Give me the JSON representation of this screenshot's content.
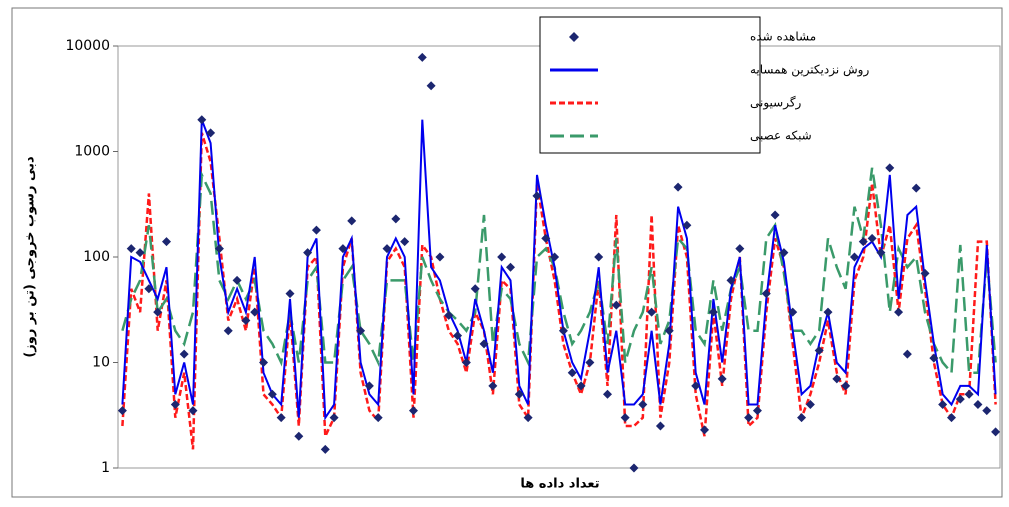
{
  "chart_data": {
    "type": "line",
    "x_label": "تعداد داده ها",
    "y_label": "دبی رسوب خروجی (تن بر روز)",
    "y_log": true,
    "ylim": [
      1,
      10000
    ],
    "yticks": [
      1,
      10,
      100,
      1000,
      10000
    ],
    "legend": "upper center",
    "categories": [
      null,
      null,
      null,
      null,
      null,
      null,
      null,
      null,
      null,
      null,
      null,
      null,
      null,
      null,
      null,
      null,
      null,
      null,
      null,
      null,
      null,
      null,
      null,
      null,
      null,
      null,
      null,
      null,
      null,
      null,
      null,
      null,
      null,
      null,
      null,
      null,
      null,
      null,
      null,
      null,
      null,
      null,
      null,
      null,
      null,
      null,
      null,
      null,
      null,
      null,
      null,
      null,
      null,
      null,
      null,
      null,
      null,
      null,
      null,
      null,
      null,
      null,
      null,
      null,
      null,
      null,
      null,
      null,
      null,
      null,
      null,
      null,
      null,
      null,
      null,
      null,
      null,
      null,
      null,
      null,
      null,
      null,
      null,
      null,
      null,
      null,
      null,
      null,
      null,
      null,
      null,
      null,
      null,
      null,
      null,
      null,
      null,
      null,
      null,
      null
    ],
    "series": [
      {
        "name": "مشاهده شده",
        "color": "#1c2670",
        "marker": "diamond",
        "values": [
          3.5,
          120,
          110,
          50,
          30,
          140,
          4,
          12,
          3.5,
          2000,
          1500,
          120,
          20,
          60,
          25,
          30,
          10,
          5,
          3,
          45,
          2,
          110,
          180,
          1.5,
          3,
          120,
          220,
          20,
          6,
          3,
          120,
          230,
          140,
          3.5,
          7800,
          4200,
          100,
          28,
          18,
          10,
          50,
          15,
          6,
          100,
          80,
          5,
          3,
          380,
          150,
          100,
          20,
          8,
          6,
          10,
          100,
          5,
          35,
          3,
          1,
          4,
          30,
          2.5,
          20,
          460,
          200,
          6,
          2.3,
          30,
          7,
          60,
          120,
          3,
          3.5,
          45,
          250,
          110,
          30,
          3,
          4,
          13,
          30,
          7,
          6,
          100,
          140,
          150,
          110,
          700,
          30,
          12,
          450,
          70,
          11,
          4,
          3,
          4.5,
          5,
          4,
          3.5,
          2.2
        ]
      },
      {
        "name": "روش نزدیکترین همسایه",
        "color": "#0000ee",
        "line_style": "solid",
        "values": [
          4,
          100,
          90,
          60,
          40,
          80,
          5,
          10,
          4,
          2000,
          1200,
          100,
          30,
          50,
          30,
          100,
          8,
          5,
          4,
          40,
          3,
          100,
          150,
          3,
          4,
          100,
          150,
          10,
          5,
          4,
          100,
          150,
          100,
          5,
          2000,
          80,
          60,
          30,
          20,
          10,
          40,
          20,
          8,
          80,
          60,
          6,
          4,
          600,
          200,
          80,
          20,
          10,
          7,
          20,
          80,
          8,
          20,
          4,
          4,
          5,
          20,
          4,
          15,
          300,
          150,
          8,
          4,
          40,
          10,
          50,
          100,
          4,
          4,
          40,
          200,
          90,
          20,
          5,
          6,
          15,
          30,
          10,
          8,
          80,
          120,
          140,
          100,
          600,
          40,
          250,
          300,
          60,
          15,
          5,
          4,
          6,
          6,
          5,
          130,
          5
        ]
      },
      {
        "name": "رگرسیونی",
        "color": "#ff1a1a",
        "line_style": "dashed",
        "values": [
          2.5,
          50,
          30,
          400,
          20,
          60,
          3,
          8,
          1.5,
          1500,
          800,
          150,
          25,
          40,
          20,
          80,
          5,
          4,
          3,
          30,
          2.5,
          80,
          100,
          2,
          3,
          80,
          150,
          8,
          3.5,
          2.8,
          90,
          120,
          80,
          3,
          130,
          100,
          40,
          20,
          15,
          8,
          30,
          20,
          5,
          60,
          50,
          4,
          3,
          500,
          150,
          60,
          15,
          8,
          5,
          10,
          60,
          6,
          250,
          2.5,
          2.5,
          3,
          250,
          3,
          10,
          200,
          100,
          5,
          2,
          30,
          6,
          40,
          100,
          2.5,
          3,
          30,
          150,
          80,
          15,
          3,
          5,
          10,
          25,
          8,
          5,
          60,
          100,
          500,
          100,
          200,
          30,
          150,
          200,
          50,
          10,
          4,
          3,
          5,
          5,
          140,
          140,
          4
        ]
      },
      {
        "name": "شبکه عصبی",
        "color": "#3a9a6a",
        "line_style": "long-dashed",
        "values": [
          20,
          40,
          60,
          200,
          30,
          40,
          20,
          15,
          30,
          600,
          400,
          60,
          40,
          60,
          40,
          60,
          20,
          15,
          10,
          30,
          10,
          60,
          80,
          10,
          10,
          60,
          80,
          20,
          15,
          10,
          60,
          60,
          60,
          10,
          100,
          60,
          40,
          30,
          25,
          20,
          30,
          250,
          15,
          50,
          40,
          15,
          10,
          100,
          120,
          80,
          30,
          15,
          20,
          30,
          60,
          15,
          150,
          10,
          20,
          30,
          80,
          15,
          25,
          150,
          120,
          20,
          15,
          60,
          20,
          50,
          80,
          20,
          20,
          150,
          200,
          70,
          20,
          20,
          15,
          20,
          150,
          80,
          50,
          300,
          150,
          700,
          200,
          30,
          120,
          80,
          100,
          30,
          15,
          10,
          8,
          130,
          8,
          8,
          100,
          10
        ]
      }
    ]
  }
}
